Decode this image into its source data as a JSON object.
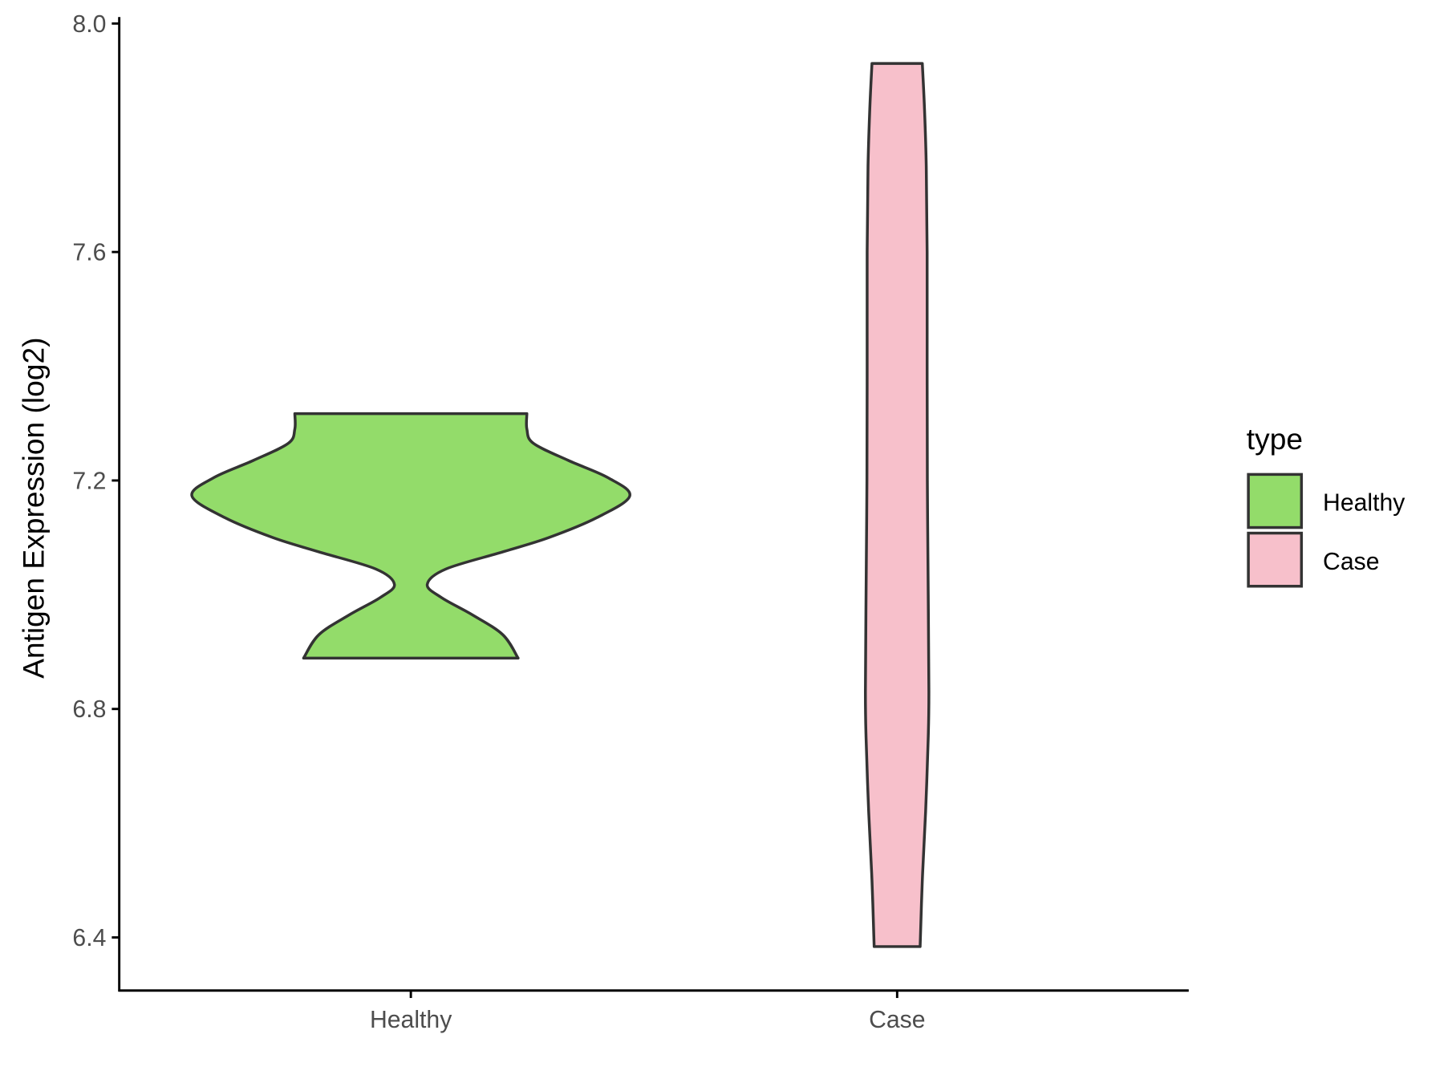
{
  "chart_data": {
    "type": "violin",
    "title": "",
    "xlabel": "",
    "ylabel": "Antigen Expression (log2)",
    "ylim": [
      6.3,
      8.02
    ],
    "yticks": [
      "6.4",
      "6.8",
      "7.2",
      "7.6",
      "8.0"
    ],
    "categories": [
      "Healthy",
      "Case"
    ],
    "grid": false,
    "legend": {
      "title": "type",
      "position": "right",
      "entries": [
        "Healthy",
        "Case"
      ]
    },
    "series": [
      {
        "name": "Healthy",
        "color": "#93DC6A",
        "range": [
          6.89,
          7.317
        ],
        "density_profile": [
          [
            6.889,
            0.49
          ],
          [
            6.93,
            0.42
          ],
          [
            6.965,
            0.28
          ],
          [
            6.995,
            0.14
          ],
          [
            7.018,
            0.075
          ],
          [
            7.045,
            0.16
          ],
          [
            7.075,
            0.42
          ],
          [
            7.1,
            0.63
          ],
          [
            7.135,
            0.85
          ],
          [
            7.173,
            1.0
          ],
          [
            7.205,
            0.9
          ],
          [
            7.235,
            0.72
          ],
          [
            7.265,
            0.56
          ],
          [
            7.29,
            0.53
          ],
          [
            7.317,
            0.53
          ]
        ]
      },
      {
        "name": "Case",
        "color": "#F7C0CB",
        "range": [
          6.384,
          7.93
        ],
        "density_profile": [
          [
            6.384,
            0.105
          ],
          [
            6.5,
            0.115
          ],
          [
            6.62,
            0.13
          ],
          [
            6.75,
            0.142
          ],
          [
            6.83,
            0.145
          ],
          [
            7.0,
            0.142
          ],
          [
            7.2,
            0.138
          ],
          [
            7.4,
            0.137
          ],
          [
            7.6,
            0.137
          ],
          [
            7.75,
            0.133
          ],
          [
            7.85,
            0.125
          ],
          [
            7.93,
            0.115
          ]
        ]
      }
    ]
  }
}
